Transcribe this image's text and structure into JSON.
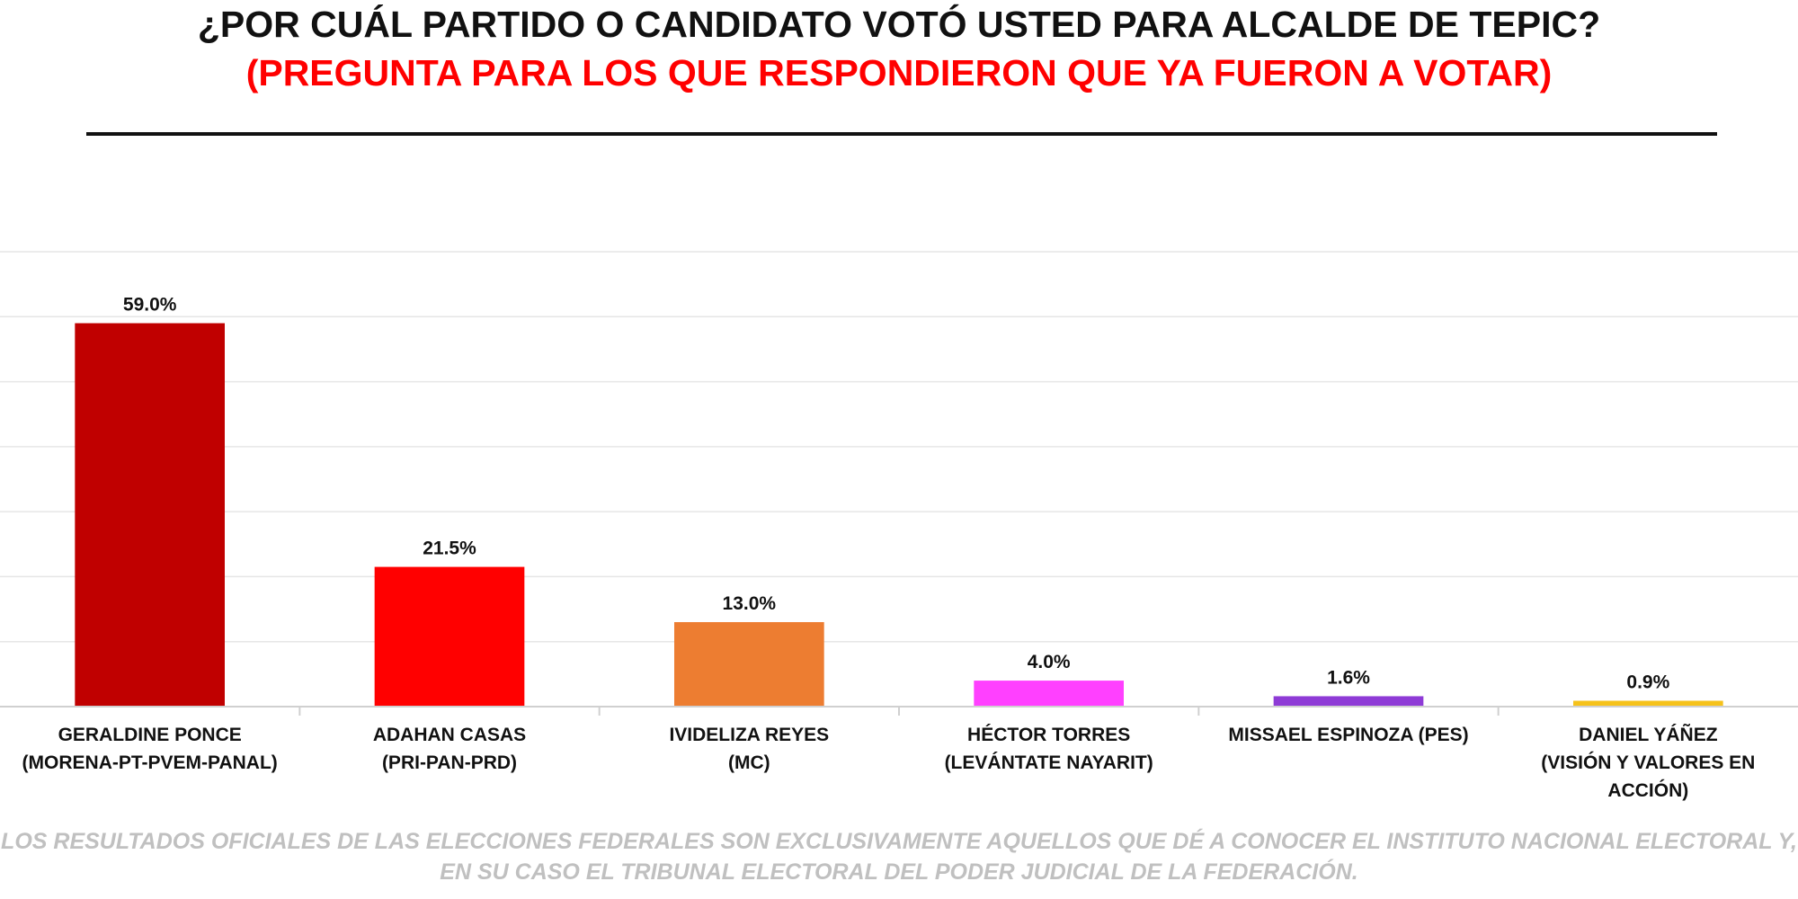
{
  "header": {
    "title": "¿POR CUÁL PARTIDO O CANDIDATO VOTÓ USTED PARA ALCALDE DE TEPIC?",
    "subtitle": "(PREGUNTA PARA LOS QUE RESPONDIERON QUE YA FUERON A VOTAR)"
  },
  "footer": {
    "line1": "LOS RESULTADOS OFICIALES DE LAS ELECCIONES FEDERALES SON EXCLUSIVAMENTE AQUELLOS QUE DÉ A CONOCER EL INSTITUTO NACIONAL ELECTORAL Y,",
    "line2": "EN SU CASO EL TRIBUNAL ELECTORAL DEL PODER JUDICIAL DE LA FEDERACIÓN."
  },
  "chart_data": {
    "type": "bar",
    "title": "¿POR CUÁL PARTIDO O CANDIDATO VOTÓ USTED PARA ALCALDE DE TEPIC?",
    "subtitle": "(PREGUNTA PARA LOS QUE RESPONDIERON QUE YA FUERON A VOTAR)",
    "categories": [
      [
        "GERALDINE PONCE",
        "(MORENA-PT-PVEM-PANAL)"
      ],
      [
        "ADAHAN CASAS",
        "(PRI-PAN-PRD)"
      ],
      [
        "IVIDELIZA REYES",
        "(MC)"
      ],
      [
        "HÉCTOR TORRES",
        "(LEVÁNTATE NAYARIT)"
      ],
      [
        "MISSAEL ESPINOZA (PES)"
      ],
      [
        "DANIEL YÁÑEZ",
        "(VISIÓN Y VALORES EN",
        "ACCIÓN)"
      ]
    ],
    "values": [
      59.0,
      21.5,
      13.0,
      4.0,
      1.6,
      0.9
    ],
    "value_labels": [
      "59.0%",
      "21.5%",
      "13.0%",
      "4.0%",
      "1.6%",
      "0.9%"
    ],
    "colors": [
      "#c00000",
      "#ff0000",
      "#ed7d31",
      "#ff40ff",
      "#8e3bd6",
      "#f5c21b"
    ],
    "ylim": [
      0,
      70
    ],
    "grid": true,
    "legend": "none",
    "xlabel": "",
    "ylabel": ""
  }
}
